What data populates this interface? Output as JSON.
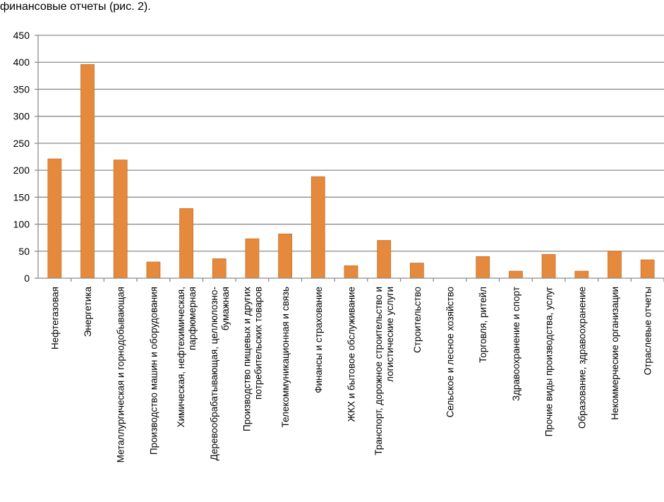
{
  "caption": "финансовые отчеты (рис. 2).",
  "colors": {
    "bar": "#E5893D",
    "bar_edge": "#C8712A",
    "grid": "#8C8C8C",
    "axis": "#8C8C8C",
    "text": "#000000"
  },
  "chart_data": {
    "type": "bar",
    "title": "",
    "xlabel": "",
    "ylabel": "",
    "ylim": [
      0,
      450
    ],
    "yticks": [
      0,
      50,
      100,
      150,
      200,
      250,
      300,
      350,
      400,
      450
    ],
    "grid": true,
    "legend": "none",
    "categories": [
      [
        "Нефтегазовая"
      ],
      [
        "Энергетика"
      ],
      [
        "Металлургическая и горнодобывающая"
      ],
      [
        "Производство машин и оборудования"
      ],
      [
        "Химическая, нефтехимическая,",
        "парфюмерная"
      ],
      [
        "Деревообрабатывающая, целлюлозно-",
        "бумажная"
      ],
      [
        "Производство пищевых и других",
        "потребительских товаров"
      ],
      [
        "Телекоммуникационная и связь"
      ],
      [
        "Финансы и страхование"
      ],
      [
        "ЖКХ и бытовое обслуживание"
      ],
      [
        "Транспорт, дорожное строительство и",
        "логистические услуги"
      ],
      [
        "Строительство"
      ],
      [
        "Сельское и лесное хозяйство"
      ],
      [
        "Торговля, ритейл"
      ],
      [
        "Здравоохранение и спорт"
      ],
      [
        "Прочие виды производства, услуг"
      ],
      [
        "Образование, здравоохранение"
      ],
      [
        "Некоммерческие организации"
      ],
      [
        "Отраслевые отчеты"
      ]
    ],
    "values": [
      221,
      396,
      219,
      30,
      129,
      36,
      73,
      82,
      188,
      23,
      70,
      28,
      0,
      40,
      13,
      44,
      13,
      50,
      34
    ]
  }
}
